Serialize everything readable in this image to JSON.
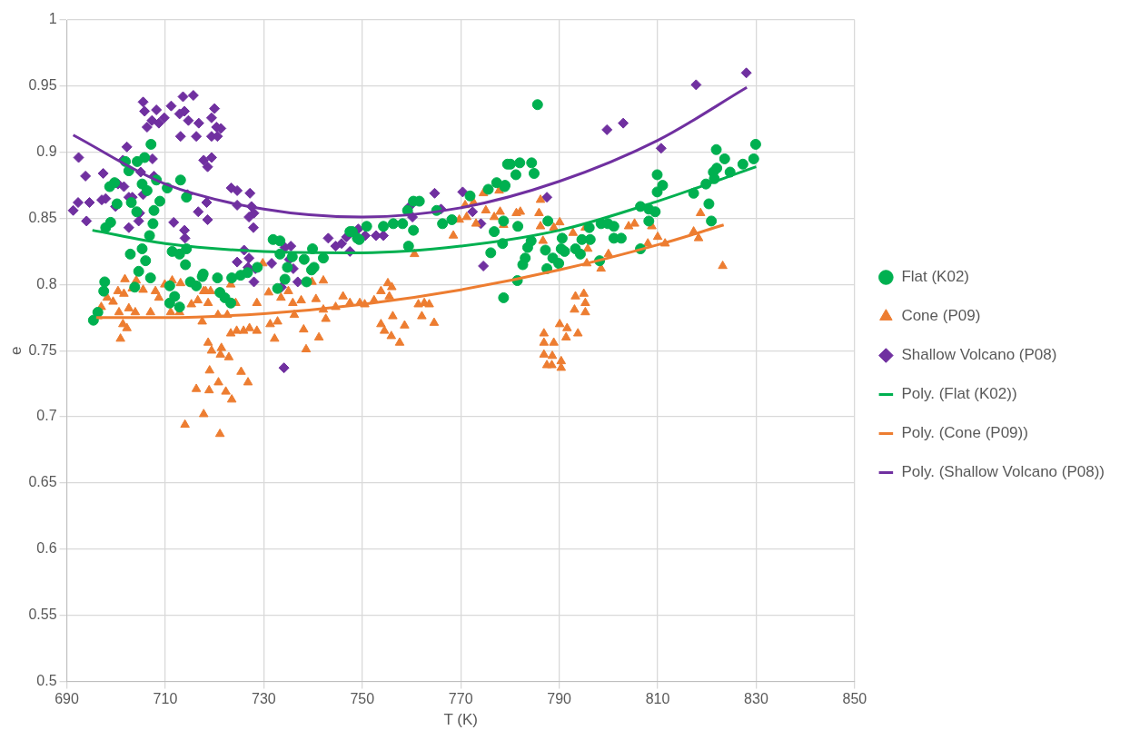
{
  "chart_data": {
    "type": "scatter",
    "xlabel": "T (K)",
    "ylabel": "e",
    "xlim": [
      690,
      850
    ],
    "ylim": [
      0.5,
      1
    ],
    "xticks": [
      690,
      710,
      730,
      750,
      770,
      790,
      810,
      830,
      850
    ],
    "yticks": [
      0.5,
      0.55,
      0.6,
      0.65,
      0.7,
      0.75,
      0.8,
      0.85,
      0.9,
      0.95,
      1
    ],
    "grid": true,
    "legend": "right",
    "series": [
      {
        "name": "Flat (K02)",
        "marker": "circle",
        "color": "#00b050",
        "x": [
          695.4,
          696.3,
          697.7,
          697.5,
          697.9,
          698.9,
          698.7,
          699.7,
          701.9,
          702.6,
          704.3,
          705.8,
          707.1,
          700.2,
          703.1,
          704.2,
          705.3,
          706.3,
          708.2,
          708.9,
          707.7,
          707.5,
          706.8,
          705.3,
          706.0,
          702.9,
          704.6,
          707.0,
          703.8,
          710.4,
          713.1,
          714.3,
          711.4,
          712.9,
          714.1,
          715.1,
          716.3,
          717.5,
          710.9,
          711.9,
          710.9,
          712.9,
          714.3,
          717.7,
          720.6,
          721.1,
          722.1,
          723.3,
          723.5,
          725.3,
          726.7,
          728.7,
          731.9,
          733.3,
          733.3,
          734.8,
          734.3,
          732.8,
          735.8,
          738.2,
          739.9,
          740.2,
          742.1,
          738.7,
          747.5,
          749.0,
          739.7,
          748.0,
          749.4,
          750.9,
          754.3,
          756.3,
          758.2,
          759.2,
          760.4,
          761.6,
          760.4,
          759.4,
          765.1,
          766.3,
          768.2,
          771.9,
          775.6,
          777.3,
          779.0,
          776.8,
          776.1,
          778.5,
          778.7,
          779.5,
          785.6,
          780.1,
          782.0,
          784.4,
          781.2,
          784.9,
          778.9,
          778.7,
          781.6,
          781.5,
          787.7,
          784.3,
          783.6,
          783.1,
          782.6,
          787.2,
          787.5,
          788.7,
          789.9,
          790.6,
          790.4,
          791.1,
          793.3,
          794.6,
          794.3,
          796.3,
          796.1,
          798.2,
          798.5,
          799.9,
          801.1,
          801.1,
          802.6,
          806.5,
          806.5,
          808.2,
          808.2,
          809.9,
          809.9,
          809.5,
          811.0,
          817.3,
          819.8,
          820.4,
          820.9,
          821.9,
          823.6,
          821.3,
          822.0,
          821.5,
          824.7,
          827.3,
          829.5,
          829.9
        ],
        "values": [
          0.773,
          0.779,
          0.802,
          0.795,
          0.843,
          0.847,
          0.874,
          0.877,
          0.893,
          0.886,
          0.893,
          0.896,
          0.906,
          0.861,
          0.862,
          0.855,
          0.876,
          0.871,
          0.879,
          0.863,
          0.856,
          0.846,
          0.837,
          0.827,
          0.818,
          0.823,
          0.81,
          0.805,
          0.798,
          0.873,
          0.879,
          0.866,
          0.825,
          0.823,
          0.815,
          0.802,
          0.799,
          0.806,
          0.799,
          0.791,
          0.786,
          0.783,
          0.827,
          0.808,
          0.805,
          0.794,
          0.79,
          0.786,
          0.805,
          0.807,
          0.809,
          0.813,
          0.834,
          0.833,
          0.823,
          0.813,
          0.804,
          0.797,
          0.821,
          0.819,
          0.827,
          0.813,
          0.82,
          0.802,
          0.84,
          0.835,
          0.811,
          0.84,
          0.834,
          0.844,
          0.844,
          0.846,
          0.846,
          0.856,
          0.863,
          0.863,
          0.841,
          0.829,
          0.856,
          0.846,
          0.849,
          0.867,
          0.872,
          0.877,
          0.875,
          0.84,
          0.824,
          0.831,
          0.79,
          0.891,
          0.936,
          0.891,
          0.892,
          0.892,
          0.883,
          0.884,
          0.874,
          0.848,
          0.844,
          0.803,
          0.848,
          0.833,
          0.828,
          0.82,
          0.815,
          0.826,
          0.812,
          0.82,
          0.816,
          0.835,
          0.827,
          0.825,
          0.827,
          0.834,
          0.823,
          0.834,
          0.843,
          0.818,
          0.846,
          0.846,
          0.844,
          0.835,
          0.835,
          0.859,
          0.827,
          0.857,
          0.848,
          0.883,
          0.87,
          0.855,
          0.875,
          0.869,
          0.876,
          0.861,
          0.848,
          0.902,
          0.895,
          0.885,
          0.888,
          0.88,
          0.885,
          0.891,
          0.895,
          0.906
        ]
      },
      {
        "name": "Cone (P09)",
        "marker": "triangle",
        "color": "#ed7d31",
        "x": [
          696.3,
          697.0,
          698.2,
          699.4,
          700.4,
          701.8,
          701.6,
          700.6,
          701.4,
          700.9,
          702.6,
          702.2,
          703.9,
          703.3,
          704.1,
          705.5,
          707.0,
          708.0,
          708.7,
          709.9,
          711.4,
          711.1,
          713.1,
          712.9,
          715.3,
          716.6,
          716.3,
          714.0,
          717.8,
          717.8,
          717.5,
          718.2,
          719.2,
          718.7,
          720.7,
          722.6,
          723.3,
          724.3,
          723.3,
          724.5,
          718.7,
          719.4,
          721.4,
          721.2,
          722.9,
          719.0,
          720.8,
          718.9,
          722.3,
          723.5,
          725.4,
          726.8,
          721.1,
          725.9,
          727.1,
          728.6,
          728.6,
          729.8,
          731.0,
          731.3,
          732.2,
          732.8,
          733.5,
          735.0,
          735.9,
          736.2,
          737.6,
          738.1,
          738.6,
          739.8,
          740.6,
          742.1,
          742.1,
          742.6,
          741.2,
          744.6,
          746.1,
          747.5,
          749.5,
          750.5,
          752.4,
          753.8,
          755.2,
          756.0,
          755.5,
          753.8,
          756.2,
          754.5,
          755.9,
          757.6,
          758.6,
          761.4,
          762.6,
          763.6,
          762.1,
          764.6,
          760.6,
          768.5,
          769.7,
          771.2,
          770.9,
          772.6,
          773.1,
          774.6,
          775.1,
          776.8,
          777.8,
          778.0,
          778.7,
          781.3,
          782.1,
          786.2,
          785.9,
          786.2,
          786.7,
          788.9,
          790.1,
          792.8,
          795.3,
          795.8,
          795.6,
          800.0,
          798.5,
          804.1,
          805.3,
          808.0,
          808.8,
          793.3,
          795.0,
          795.3,
          793.1,
          795.3,
          790.1,
          791.6,
          791.4,
          793.8,
          786.9,
          786.9,
          788.9,
          786.9,
          788.6,
          787.5,
          788.5,
          790.4,
          790.4,
          810.0,
          811.5,
          818.7,
          817.3,
          818.3,
          823.2
        ],
        "values": [
          0.776,
          0.783,
          0.79,
          0.787,
          0.795,
          0.804,
          0.793,
          0.779,
          0.77,
          0.759,
          0.782,
          0.767,
          0.779,
          0.797,
          0.803,
          0.796,
          0.779,
          0.795,
          0.79,
          0.8,
          0.803,
          0.779,
          0.801,
          0.779,
          0.785,
          0.788,
          0.721,
          0.694,
          0.702,
          0.795,
          0.772,
          0.795,
          0.795,
          0.786,
          0.777,
          0.777,
          0.8,
          0.786,
          0.763,
          0.765,
          0.756,
          0.75,
          0.752,
          0.747,
          0.745,
          0.735,
          0.726,
          0.72,
          0.719,
          0.713,
          0.734,
          0.726,
          0.687,
          0.765,
          0.767,
          0.765,
          0.786,
          0.816,
          0.794,
          0.77,
          0.759,
          0.772,
          0.79,
          0.795,
          0.786,
          0.777,
          0.788,
          0.766,
          0.751,
          0.802,
          0.789,
          0.803,
          0.781,
          0.774,
          0.76,
          0.783,
          0.791,
          0.786,
          0.786,
          0.785,
          0.788,
          0.795,
          0.801,
          0.798,
          0.791,
          0.77,
          0.776,
          0.765,
          0.761,
          0.756,
          0.769,
          0.785,
          0.786,
          0.785,
          0.776,
          0.771,
          0.823,
          0.837,
          0.849,
          0.851,
          0.86,
          0.862,
          0.846,
          0.869,
          0.856,
          0.851,
          0.871,
          0.855,
          0.845,
          0.854,
          0.855,
          0.864,
          0.854,
          0.844,
          0.833,
          0.843,
          0.847,
          0.839,
          0.843,
          0.827,
          0.816,
          0.823,
          0.812,
          0.844,
          0.846,
          0.831,
          0.844,
          0.791,
          0.793,
          0.786,
          0.781,
          0.779,
          0.77,
          0.767,
          0.76,
          0.763,
          0.763,
          0.756,
          0.756,
          0.747,
          0.746,
          0.739,
          0.739,
          0.742,
          0.737,
          0.836,
          0.831,
          0.854,
          0.84,
          0.835,
          0.814
        ]
      },
      {
        "name": "Shallow Volcano (P08)",
        "marker": "diamond",
        "color": "#7030a0",
        "x": [
          692.4,
          693.8,
          691.3,
          692.3,
          694.0,
          694.6,
          697.4,
          697.1,
          697.9,
          699.9,
          701.4,
          702.2,
          700.4,
          701.6,
          702.6,
          703.3,
          702.6,
          704.6,
          704.8,
          705.5,
          705.0,
          705.5,
          705.8,
          706.3,
          707.3,
          708.2,
          708.7,
          709.8,
          707.4,
          707.7,
          711.2,
          712.9,
          713.6,
          715.7,
          713.9,
          714.7,
          713.1,
          716.3,
          717.8,
          716.8,
          711.7,
          713.9,
          714.0,
          716.7,
          714.5,
          720.0,
          719.4,
          720.4,
          721.3,
          719.4,
          720.6,
          718.6,
          719.4,
          718.4,
          718.6,
          723.4,
          724.6,
          727.2,
          724.6,
          727.5,
          728.0,
          727.0,
          727.9,
          726.0,
          724.6,
          727.0,
          726.8,
          728.3,
          728.0,
          731.6,
          734.3,
          735.5,
          735.2,
          736.0,
          733.6,
          736.9,
          734.1,
          743.1,
          744.6,
          745.8,
          746.8,
          747.5,
          749.2,
          750.6,
          752.8,
          754.3,
          759.6,
          760.2,
          764.7,
          766.0,
          770.4,
          772.4,
          774.1,
          774.6,
          787.5,
          799.7,
          803.0,
          810.7,
          817.8,
          828.0
        ],
        "values": [
          0.896,
          0.882,
          0.856,
          0.862,
          0.848,
          0.862,
          0.884,
          0.864,
          0.865,
          0.859,
          0.894,
          0.904,
          0.876,
          0.874,
          0.866,
          0.866,
          0.843,
          0.848,
          0.854,
          0.868,
          0.885,
          0.938,
          0.931,
          0.919,
          0.924,
          0.932,
          0.922,
          0.926,
          0.895,
          0.882,
          0.935,
          0.929,
          0.942,
          0.943,
          0.931,
          0.924,
          0.912,
          0.912,
          0.894,
          0.922,
          0.847,
          0.841,
          0.835,
          0.855,
          0.868,
          0.933,
          0.926,
          0.919,
          0.918,
          0.912,
          0.912,
          0.889,
          0.896,
          0.862,
          0.849,
          0.873,
          0.871,
          0.869,
          0.86,
          0.859,
          0.854,
          0.851,
          0.843,
          0.826,
          0.817,
          0.82,
          0.813,
          0.812,
          0.802,
          0.816,
          0.828,
          0.829,
          0.819,
          0.812,
          0.798,
          0.802,
          0.737,
          0.835,
          0.829,
          0.831,
          0.836,
          0.825,
          0.842,
          0.837,
          0.837,
          0.837,
          0.859,
          0.851,
          0.869,
          0.857,
          0.87,
          0.855,
          0.846,
          0.814,
          0.866,
          0.917,
          0.922,
          0.903,
          0.951,
          0.96
        ]
      },
      {
        "name": "Poly. (Flat (K02))",
        "type": "line",
        "marker": "none",
        "color": "#00b050",
        "x": [
          695.2,
          710,
          730,
          750,
          770,
          790,
          810,
          830
        ],
        "values": [
          0.841,
          0.831,
          0.825,
          0.824,
          0.829,
          0.841,
          0.863,
          0.889
        ]
      },
      {
        "name": "Poly. (Cone (P09))",
        "type": "line",
        "marker": "none",
        "color": "#ed7d31",
        "x": [
          696,
          710,
          730,
          750,
          770,
          790,
          810,
          823.4
        ],
        "values": [
          0.775,
          0.775,
          0.778,
          0.785,
          0.796,
          0.811,
          0.83,
          0.845
        ]
      },
      {
        "name": "Poly. (Shallow Volcano (P08))",
        "type": "line",
        "marker": "none",
        "color": "#7030a0",
        "x": [
          691.3,
          710,
          730,
          750,
          770,
          790,
          810,
          828.1
        ],
        "values": [
          0.913,
          0.876,
          0.857,
          0.851,
          0.858,
          0.878,
          0.909,
          0.949
        ]
      }
    ]
  }
}
